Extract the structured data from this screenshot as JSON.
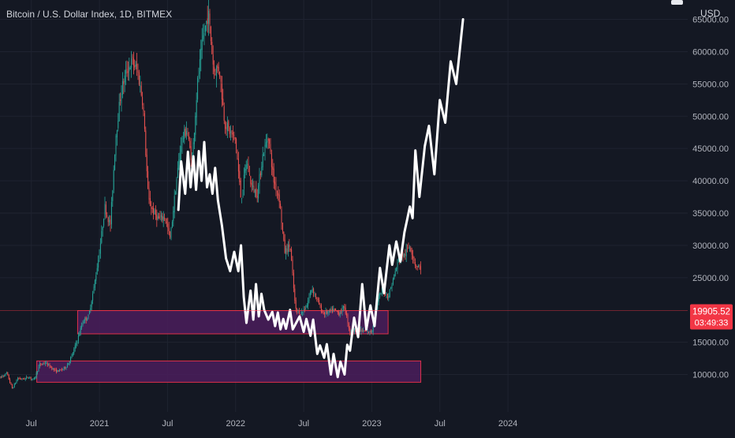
{
  "header": {
    "title": "Bitcoin / U.S. Dollar Index, 1D, BITMEX",
    "currency": "USD"
  },
  "price_tag": {
    "value": "19905.52",
    "countdown": "03:49:33"
  },
  "colors": {
    "background": "#141823",
    "candle_up": "#26a69a",
    "candle_down": "#ef5350",
    "zone_fill": "#4a1d5c",
    "zone_border": "#e0304a",
    "projection": "#ffffff",
    "price_tag_bg": "#f23645",
    "axis_text": "#b2b5be"
  },
  "chart_data": {
    "type": "line",
    "y_axis": {
      "ticks": [
        {
          "label": "65000.00",
          "value": 65000
        },
        {
          "label": "60000.00",
          "value": 60000
        },
        {
          "label": "55000.00",
          "value": 55000
        },
        {
          "label": "50000.00",
          "value": 50000
        },
        {
          "label": "45000.00",
          "value": 45000
        },
        {
          "label": "40000.00",
          "value": 40000
        },
        {
          "label": "35000.00",
          "value": 35000
        },
        {
          "label": "30000.00",
          "value": 30000
        },
        {
          "label": "25000.00",
          "value": 25000
        },
        {
          "label": "15000.00",
          "value": 15000
        },
        {
          "label": "10000.00",
          "value": 10000
        }
      ],
      "ylim": [
        4200,
        68000
      ]
    },
    "x_axis": {
      "ticks": [
        {
          "label": "Jul",
          "value": 2020.5
        },
        {
          "label": "2021",
          "value": 2021.0
        },
        {
          "label": "Jul",
          "value": 2021.5
        },
        {
          "label": "2022",
          "value": 2022.0
        },
        {
          "label": "Jul",
          "value": 2022.5
        },
        {
          "label": "2023",
          "value": 2023.0
        },
        {
          "label": "Jul",
          "value": 2023.5
        },
        {
          "label": "2024",
          "value": 2024.0
        }
      ],
      "xlim": [
        2020.27,
        2025.32
      ]
    },
    "current_price": 19905.52,
    "zones": [
      {
        "x_start": 2020.84,
        "x_end": 2023.12,
        "y_low": 16300,
        "y_high": 19900
      },
      {
        "x_start": 2020.54,
        "x_end": 2023.36,
        "y_low": 8800,
        "y_high": 12100
      }
    ],
    "history_path": [
      [
        2020.27,
        9500
      ],
      [
        2020.32,
        10200
      ],
      [
        2020.36,
        7800
      ],
      [
        2020.4,
        9400
      ],
      [
        2020.44,
        9300
      ],
      [
        2020.48,
        9600
      ],
      [
        2020.52,
        9200
      ],
      [
        2020.56,
        11500
      ],
      [
        2020.6,
        11800
      ],
      [
        2020.64,
        11200
      ],
      [
        2020.68,
        10500
      ],
      [
        2020.72,
        10700
      ],
      [
        2020.76,
        11300
      ],
      [
        2020.8,
        13000
      ],
      [
        2020.84,
        15500
      ],
      [
        2020.88,
        18300
      ],
      [
        2020.92,
        19000
      ],
      [
        2020.96,
        23500
      ],
      [
        2021.0,
        29000
      ],
      [
        2021.04,
        36000
      ],
      [
        2021.08,
        33000
      ],
      [
        2021.12,
        47000
      ],
      [
        2021.16,
        54000
      ],
      [
        2021.2,
        57000
      ],
      [
        2021.24,
        58500
      ],
      [
        2021.28,
        57000
      ],
      [
        2021.32,
        52000
      ],
      [
        2021.36,
        37000
      ],
      [
        2021.4,
        35000
      ],
      [
        2021.44,
        34000
      ],
      [
        2021.48,
        34500
      ],
      [
        2021.52,
        31000
      ],
      [
        2021.56,
        39000
      ],
      [
        2021.6,
        46000
      ],
      [
        2021.64,
        48000
      ],
      [
        2021.68,
        43000
      ],
      [
        2021.72,
        55000
      ],
      [
        2021.76,
        62000
      ],
      [
        2021.8,
        66000
      ],
      [
        2021.84,
        57000
      ],
      [
        2021.88,
        57500
      ],
      [
        2021.92,
        49000
      ],
      [
        2021.96,
        47500
      ],
      [
        2022.0,
        46300
      ],
      [
        2022.04,
        37000
      ],
      [
        2022.08,
        43000
      ],
      [
        2022.12,
        39000
      ],
      [
        2022.16,
        38000
      ],
      [
        2022.2,
        44000
      ],
      [
        2022.24,
        47000
      ],
      [
        2022.28,
        40000
      ],
      [
        2022.32,
        37500
      ],
      [
        2022.36,
        29000
      ],
      [
        2022.4,
        30000
      ],
      [
        2022.44,
        20000
      ],
      [
        2022.48,
        19500
      ],
      [
        2022.52,
        20500
      ],
      [
        2022.56,
        23500
      ],
      [
        2022.6,
        21500
      ],
      [
        2022.64,
        19500
      ],
      [
        2022.68,
        19600
      ],
      [
        2022.72,
        20000
      ],
      [
        2022.76,
        19500
      ],
      [
        2022.8,
        20500
      ],
      [
        2022.84,
        16500
      ],
      [
        2022.88,
        17000
      ],
      [
        2022.92,
        16800
      ],
      [
        2022.96,
        16600
      ],
      [
        2023.0,
        16600
      ],
      [
        2023.04,
        21000
      ],
      [
        2023.08,
        23500
      ],
      [
        2023.12,
        22000
      ],
      [
        2023.16,
        25000
      ],
      [
        2023.2,
        28000
      ],
      [
        2023.24,
        28500
      ],
      [
        2023.28,
        30000
      ],
      [
        2023.32,
        27000
      ],
      [
        2023.36,
        26500
      ]
    ],
    "projection_path": [
      [
        2021.58,
        35500
      ],
      [
        2021.6,
        43000
      ],
      [
        2021.63,
        38000
      ],
      [
        2021.65,
        44500
      ],
      [
        2021.67,
        39000
      ],
      [
        2021.69,
        43800
      ],
      [
        2021.71,
        38600
      ],
      [
        2021.73,
        44600
      ],
      [
        2021.75,
        40000
      ],
      [
        2021.77,
        46000
      ],
      [
        2021.79,
        39000
      ],
      [
        2021.81,
        41000
      ],
      [
        2021.83,
        38000
      ],
      [
        2021.85,
        42000
      ],
      [
        2021.87,
        37000
      ],
      [
        2021.9,
        33000
      ],
      [
        2021.93,
        28000
      ],
      [
        2021.96,
        26000
      ],
      [
        2021.99,
        29000
      ],
      [
        2022.02,
        26000
      ],
      [
        2022.04,
        30000
      ],
      [
        2022.06,
        22000
      ],
      [
        2022.08,
        18000
      ],
      [
        2022.11,
        23000
      ],
      [
        2022.13,
        18500
      ],
      [
        2022.15,
        24000
      ],
      [
        2022.17,
        19000
      ],
      [
        2022.19,
        22500
      ],
      [
        2022.21,
        20000
      ],
      [
        2022.24,
        18500
      ],
      [
        2022.27,
        19700
      ],
      [
        2022.29,
        17500
      ],
      [
        2022.31,
        19600
      ],
      [
        2022.33,
        17000
      ],
      [
        2022.35,
        18600
      ],
      [
        2022.37,
        17100
      ],
      [
        2022.4,
        20000
      ],
      [
        2022.42,
        17000
      ],
      [
        2022.45,
        18200
      ],
      [
        2022.47,
        19000
      ],
      [
        2022.5,
        16600
      ],
      [
        2022.52,
        18600
      ],
      [
        2022.55,
        16000
      ],
      [
        2022.57,
        18500
      ],
      [
        2022.6,
        13200
      ],
      [
        2022.62,
        14500
      ],
      [
        2022.65,
        12600
      ],
      [
        2022.67,
        14700
      ],
      [
        2022.7,
        10000
      ],
      [
        2022.72,
        13200
      ],
      [
        2022.75,
        9600
      ],
      [
        2022.77,
        12000
      ],
      [
        2022.8,
        10000
      ],
      [
        2022.82,
        14600
      ],
      [
        2022.84,
        13700
      ],
      [
        2022.87,
        18800
      ],
      [
        2022.9,
        15800
      ],
      [
        2022.93,
        24000
      ],
      [
        2022.96,
        17000
      ],
      [
        2022.99,
        20700
      ],
      [
        2023.02,
        17500
      ],
      [
        2023.06,
        26500
      ],
      [
        2023.09,
        22600
      ],
      [
        2023.13,
        30000
      ],
      [
        2023.15,
        27000
      ],
      [
        2023.18,
        30600
      ],
      [
        2023.21,
        27500
      ],
      [
        2023.24,
        32000
      ],
      [
        2023.26,
        34000
      ],
      [
        2023.28,
        36000
      ],
      [
        2023.3,
        34200
      ],
      [
        2023.32,
        44700
      ],
      [
        2023.35,
        37500
      ],
      [
        2023.39,
        45400
      ],
      [
        2023.42,
        48500
      ],
      [
        2023.46,
        41000
      ],
      [
        2023.5,
        52500
      ],
      [
        2023.54,
        49000
      ],
      [
        2023.58,
        58500
      ],
      [
        2023.62,
        55000
      ],
      [
        2023.67,
        65000
      ]
    ]
  }
}
